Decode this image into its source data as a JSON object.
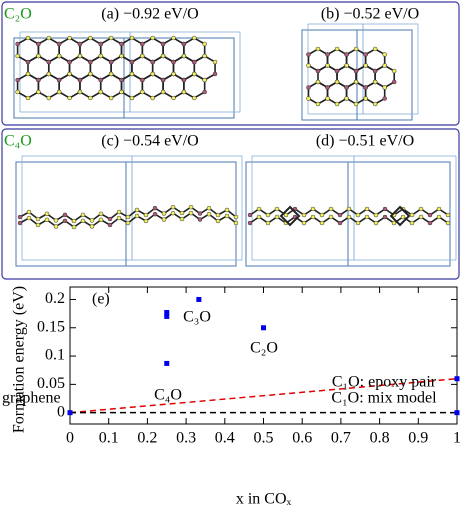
{
  "figure": {
    "groups": [
      {
        "label": "C₂O",
        "panels": [
          "(a) −0.92 eV/O",
          "(b) −0.52 eV/O"
        ]
      },
      {
        "label": "C₄O",
        "panels": [
          "(c) −0.54 eV/O",
          "(d) −0.51 eV/O"
        ]
      }
    ]
  },
  "chart_data": {
    "type": "scatter",
    "panel_label": "(e)",
    "xlabel": "x in COₓ",
    "ylabel": "Formation energy (eV)",
    "x": [
      0,
      0.25,
      0.25,
      0.25,
      0.333,
      0.5,
      1,
      1
    ],
    "values": [
      0,
      0.087,
      0.17,
      0.177,
      0.2,
      0.15,
      0.06,
      0
    ],
    "color": "#0000ee",
    "lines": [
      {
        "x": [
          0,
          1
        ],
        "values": [
          0,
          0.06
        ],
        "color": "#e00000"
      },
      {
        "x": [
          0,
          1
        ],
        "values": [
          0,
          0
        ],
        "color": "#000000"
      }
    ],
    "annotations": [
      "graphene",
      "C₄O",
      "C₃O",
      "C₂O",
      "C₁O: epoxy pair",
      "C₁O: mix model"
    ],
    "xlim": [
      0,
      1
    ],
    "ylim": [
      -0.02,
      0.222
    ],
    "xticks": [
      0,
      0.1,
      0.2,
      0.3,
      0.4,
      0.5,
      0.6,
      0.7,
      0.8,
      0.9,
      1
    ],
    "yticks": [
      0,
      0.05,
      0.1,
      0.15,
      0.2
    ]
  }
}
